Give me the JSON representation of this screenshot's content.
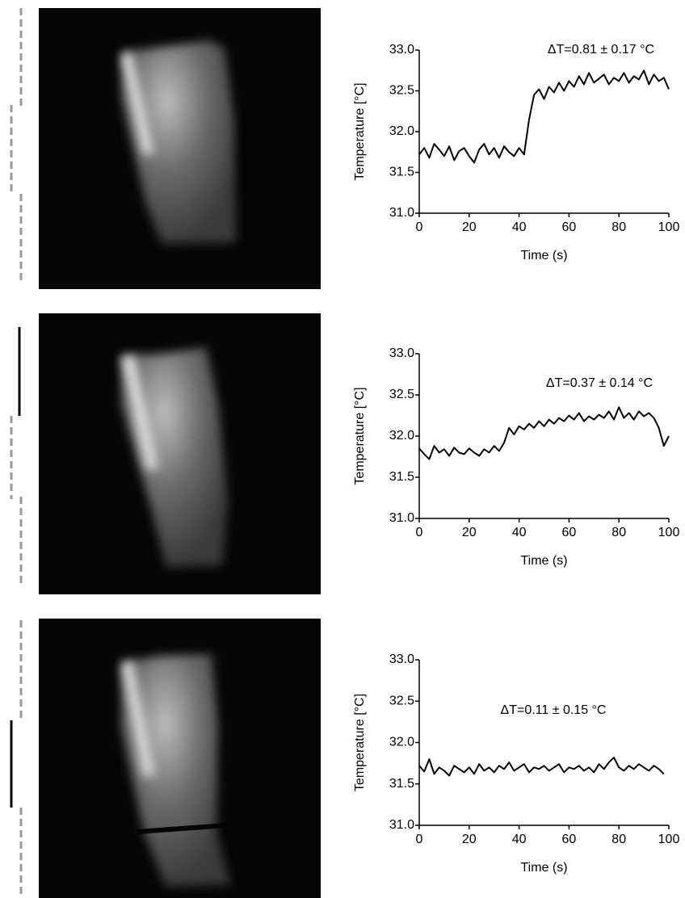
{
  "chart_data": [
    {
      "type": "line",
      "annotation": "ΔT=0.81 ± 0.17 °C",
      "ylabel": "Temperature [°C]",
      "xlabel": "Time (s)",
      "color": "#000000",
      "xlim": [
        0,
        100
      ],
      "xticks": [
        0,
        20,
        40,
        60,
        80,
        100
      ],
      "ylim": [
        31,
        33
      ],
      "yticks": [
        {
          "value": 31,
          "label": "31.0"
        },
        31.5,
        {
          "value": 32,
          "label": "32.0"
        },
        32.5,
        {
          "value": 33,
          "label": "33.0"
        }
      ],
      "x": [
        0,
        2,
        4,
        6,
        8,
        10,
        12,
        14,
        16,
        18,
        20,
        22,
        24,
        26,
        28,
        30,
        32,
        34,
        36,
        38,
        40,
        42,
        44,
        46,
        48,
        50,
        52,
        54,
        56,
        58,
        60,
        62,
        64,
        66,
        68,
        70,
        72,
        74,
        76,
        78,
        80,
        82,
        84,
        86,
        88,
        90,
        92,
        94,
        96,
        98,
        100
      ],
      "values": [
        31.72,
        31.8,
        31.68,
        31.85,
        31.78,
        31.7,
        31.82,
        31.65,
        31.76,
        31.8,
        31.7,
        31.62,
        31.78,
        31.85,
        31.72,
        31.8,
        31.68,
        31.82,
        31.75,
        31.7,
        31.8,
        31.72,
        32.15,
        32.45,
        32.52,
        32.4,
        32.55,
        32.48,
        32.6,
        32.5,
        32.62,
        32.55,
        32.68,
        32.58,
        32.72,
        32.6,
        32.65,
        32.7,
        32.58,
        32.66,
        32.62,
        32.72,
        32.6,
        32.68,
        32.64,
        32.75,
        32.58,
        32.7,
        32.62,
        32.66,
        32.52
      ]
    },
    {
      "type": "line",
      "annotation": "ΔT=0.37 ± 0.14 °C",
      "ylabel": "Temperature [°C]",
      "xlabel": "Time (s)",
      "color": "#000000",
      "xlim": [
        0,
        100
      ],
      "xticks": [
        0,
        20,
        40,
        60,
        80,
        100
      ],
      "ylim": [
        31,
        33
      ],
      "yticks": [
        {
          "value": 31,
          "label": "31.0"
        },
        31.5,
        {
          "value": 32,
          "label": "32.0"
        },
        32.5,
        {
          "value": 33,
          "label": "33.0"
        }
      ],
      "x": [
        0,
        2,
        4,
        6,
        8,
        10,
        12,
        14,
        16,
        18,
        20,
        22,
        24,
        26,
        28,
        30,
        32,
        34,
        36,
        38,
        40,
        42,
        44,
        46,
        48,
        50,
        52,
        54,
        56,
        58,
        60,
        62,
        64,
        66,
        68,
        70,
        72,
        74,
        76,
        78,
        80,
        82,
        84,
        86,
        88,
        90,
        92,
        94,
        96,
        98,
        100
      ],
      "values": [
        31.85,
        31.78,
        31.72,
        31.88,
        31.8,
        31.84,
        31.76,
        31.86,
        31.8,
        31.78,
        31.85,
        31.8,
        31.76,
        31.84,
        31.8,
        31.88,
        31.82,
        31.92,
        32.1,
        32.02,
        32.12,
        32.08,
        32.15,
        32.1,
        32.18,
        32.12,
        32.2,
        32.15,
        32.22,
        32.18,
        32.25,
        32.2,
        32.28,
        32.18,
        32.24,
        32.2,
        32.26,
        32.22,
        32.3,
        32.2,
        32.35,
        32.22,
        32.28,
        32.2,
        32.3,
        32.24,
        32.28,
        32.22,
        32.1,
        31.88,
        32.0
      ]
    },
    {
      "type": "line",
      "annotation": "ΔT=0.11 ± 0.15 °C",
      "ylabel": "Temperature [°C]",
      "xlabel": "Time (s)",
      "color": "#000000",
      "xlim": [
        0,
        100
      ],
      "xticks": [
        0,
        20,
        40,
        60,
        80,
        100
      ],
      "ylim": [
        31,
        33
      ],
      "yticks": [
        {
          "value": 31,
          "label": "31.0"
        },
        31.5,
        {
          "value": 32,
          "label": "32.0"
        },
        32.5,
        {
          "value": 33,
          "label": "33.0"
        }
      ],
      "x": [
        0,
        2,
        4,
        6,
        8,
        10,
        12,
        14,
        16,
        18,
        20,
        22,
        24,
        26,
        28,
        30,
        32,
        34,
        36,
        38,
        40,
        42,
        44,
        46,
        48,
        50,
        52,
        54,
        56,
        58,
        60,
        62,
        64,
        66,
        68,
        70,
        72,
        74,
        76,
        78,
        80,
        82,
        84,
        86,
        88,
        90,
        92,
        94,
        96,
        98
      ],
      "values": [
        31.72,
        31.65,
        31.8,
        31.62,
        31.7,
        31.66,
        31.6,
        31.72,
        31.68,
        31.64,
        31.7,
        31.62,
        31.74,
        31.66,
        31.7,
        31.64,
        31.72,
        31.68,
        31.76,
        31.66,
        31.7,
        31.74,
        31.64,
        31.7,
        31.68,
        31.72,
        31.66,
        31.7,
        31.74,
        31.64,
        31.7,
        31.68,
        31.72,
        31.66,
        31.7,
        31.64,
        31.74,
        31.68,
        31.76,
        31.82,
        31.7,
        31.66,
        31.72,
        31.68,
        31.74,
        31.7,
        31.66,
        31.72,
        31.68,
        31.62
      ]
    }
  ]
}
